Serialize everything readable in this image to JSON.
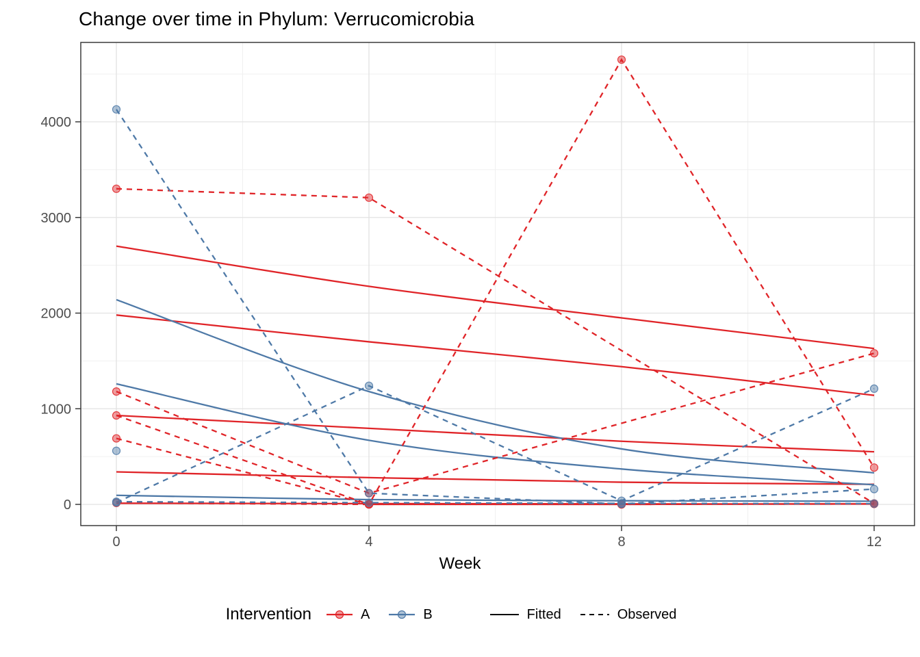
{
  "chart_data": {
    "type": "line",
    "title": "Change over time in Phylum: Verrucomicrobia",
    "xlabel": "Week",
    "ylabel": "",
    "x_ticks": [
      0,
      4,
      8,
      12
    ],
    "x_minor_ticks": [
      2,
      6,
      10
    ],
    "y_ticks": [
      0,
      1000,
      2000,
      3000,
      4000
    ],
    "y_minor_ticks": [
      500,
      1500,
      2500,
      3500,
      4500
    ],
    "xlim": [
      -0.6,
      12.65
    ],
    "ylim": [
      -220,
      4830
    ],
    "grid": "on",
    "legend_position": "bottom",
    "colors": {
      "A": "#e02428",
      "B": "#4e79a7",
      "linetype_key": "#000000"
    },
    "legend": {
      "title": "Intervention",
      "groups": [
        {
          "label": "A",
          "color": "#e02428"
        },
        {
          "label": "B",
          "color": "#4e79a7"
        }
      ],
      "linetypes": [
        {
          "label": "Fitted",
          "style": "solid"
        },
        {
          "label": "Observed",
          "style": "dashed"
        }
      ]
    },
    "weeks": [
      0,
      4,
      8,
      12
    ],
    "series": [
      {
        "name": "A-fitted-1",
        "group": "A",
        "kind": "fitted",
        "points": [
          {
            "week": 0,
            "value": 2700
          },
          {
            "week": 4,
            "value": 2280
          },
          {
            "week": 8,
            "value": 1950
          },
          {
            "week": 12,
            "value": 1630
          }
        ]
      },
      {
        "name": "A-fitted-2",
        "group": "A",
        "kind": "fitted",
        "points": [
          {
            "week": 0,
            "value": 1980
          },
          {
            "week": 4,
            "value": 1700
          },
          {
            "week": 8,
            "value": 1440
          },
          {
            "week": 12,
            "value": 1140
          }
        ]
      },
      {
        "name": "A-fitted-3",
        "group": "A",
        "kind": "fitted",
        "points": [
          {
            "week": 0,
            "value": 930
          },
          {
            "week": 4,
            "value": 795
          },
          {
            "week": 8,
            "value": 660
          },
          {
            "week": 12,
            "value": 550
          }
        ]
      },
      {
        "name": "A-fitted-4",
        "group": "A",
        "kind": "fitted",
        "points": [
          {
            "week": 0,
            "value": 340
          },
          {
            "week": 4,
            "value": 280
          },
          {
            "week": 8,
            "value": 232
          },
          {
            "week": 12,
            "value": 210
          }
        ]
      },
      {
        "name": "A-fitted-5",
        "group": "A",
        "kind": "fitted",
        "points": [
          {
            "week": 0,
            "value": 12
          },
          {
            "week": 4,
            "value": 8
          },
          {
            "week": 8,
            "value": 5
          },
          {
            "week": 12,
            "value": 4
          }
        ]
      },
      {
        "name": "B-fitted-1",
        "group": "B",
        "kind": "fitted",
        "points": [
          {
            "week": 0,
            "value": 2140
          },
          {
            "week": 4,
            "value": 1180
          },
          {
            "week": 8,
            "value": 580
          },
          {
            "week": 12,
            "value": 330
          }
        ]
      },
      {
        "name": "B-fitted-2",
        "group": "B",
        "kind": "fitted",
        "points": [
          {
            "week": 0,
            "value": 1260
          },
          {
            "week": 4,
            "value": 670
          },
          {
            "week": 8,
            "value": 370
          },
          {
            "week": 12,
            "value": 205
          }
        ]
      },
      {
        "name": "B-fitted-3",
        "group": "B",
        "kind": "fitted",
        "points": [
          {
            "week": 0,
            "value": 95
          },
          {
            "week": 4,
            "value": 50
          },
          {
            "week": 8,
            "value": 38
          },
          {
            "week": 12,
            "value": 33
          }
        ]
      },
      {
        "name": "A-observed-1",
        "group": "A",
        "kind": "observed",
        "points": [
          {
            "week": 0,
            "value": 3300
          },
          {
            "week": 4,
            "value": 3207
          },
          {
            "week": 12,
            "value": 10
          }
        ]
      },
      {
        "name": "A-observed-2",
        "group": "A",
        "kind": "observed",
        "points": [
          {
            "week": 0,
            "value": 1180
          },
          {
            "week": 4,
            "value": 117
          },
          {
            "week": 12,
            "value": 1580
          }
        ]
      },
      {
        "name": "A-observed-3",
        "group": "A",
        "kind": "observed",
        "points": [
          {
            "week": 0,
            "value": 690
          },
          {
            "week": 4,
            "value": 0
          },
          {
            "week": 8,
            "value": 4650
          },
          {
            "week": 12,
            "value": 385
          }
        ]
      },
      {
        "name": "A-observed-4",
        "group": "A",
        "kind": "observed",
        "points": [
          {
            "week": 0,
            "value": 930
          },
          {
            "week": 4,
            "value": 0
          },
          {
            "week": 8,
            "value": 0
          },
          {
            "week": 12,
            "value": 5
          }
        ]
      },
      {
        "name": "A-observed-5",
        "group": "A",
        "kind": "observed",
        "points": [
          {
            "week": 0,
            "value": 15
          },
          {
            "week": 4,
            "value": 0
          },
          {
            "week": 8,
            "value": 0
          },
          {
            "week": 12,
            "value": 5
          }
        ]
      },
      {
        "name": "B-observed-1",
        "group": "B",
        "kind": "observed",
        "points": [
          {
            "week": 0,
            "value": 4130
          },
          {
            "week": 4,
            "value": 117
          },
          {
            "week": 8,
            "value": 5
          },
          {
            "week": 12,
            "value": 160
          }
        ]
      },
      {
        "name": "B-observed-2",
        "group": "B",
        "kind": "observed",
        "points": [
          {
            "week": 0,
            "value": 20
          },
          {
            "week": 4,
            "value": 1240
          },
          {
            "week": 8,
            "value": 38
          },
          {
            "week": 12,
            "value": 1210
          }
        ]
      },
      {
        "name": "B-observed-3",
        "group": "B",
        "kind": "observed",
        "points": [
          {
            "week": 0,
            "value": 560
          }
        ]
      },
      {
        "name": "B-observed-4",
        "group": "B",
        "kind": "observed",
        "points": [
          {
            "week": 0,
            "value": 28
          },
          {
            "week": 4,
            "value": 18
          },
          {
            "week": 8,
            "value": 10
          },
          {
            "week": 12,
            "value": 8
          }
        ]
      }
    ]
  }
}
